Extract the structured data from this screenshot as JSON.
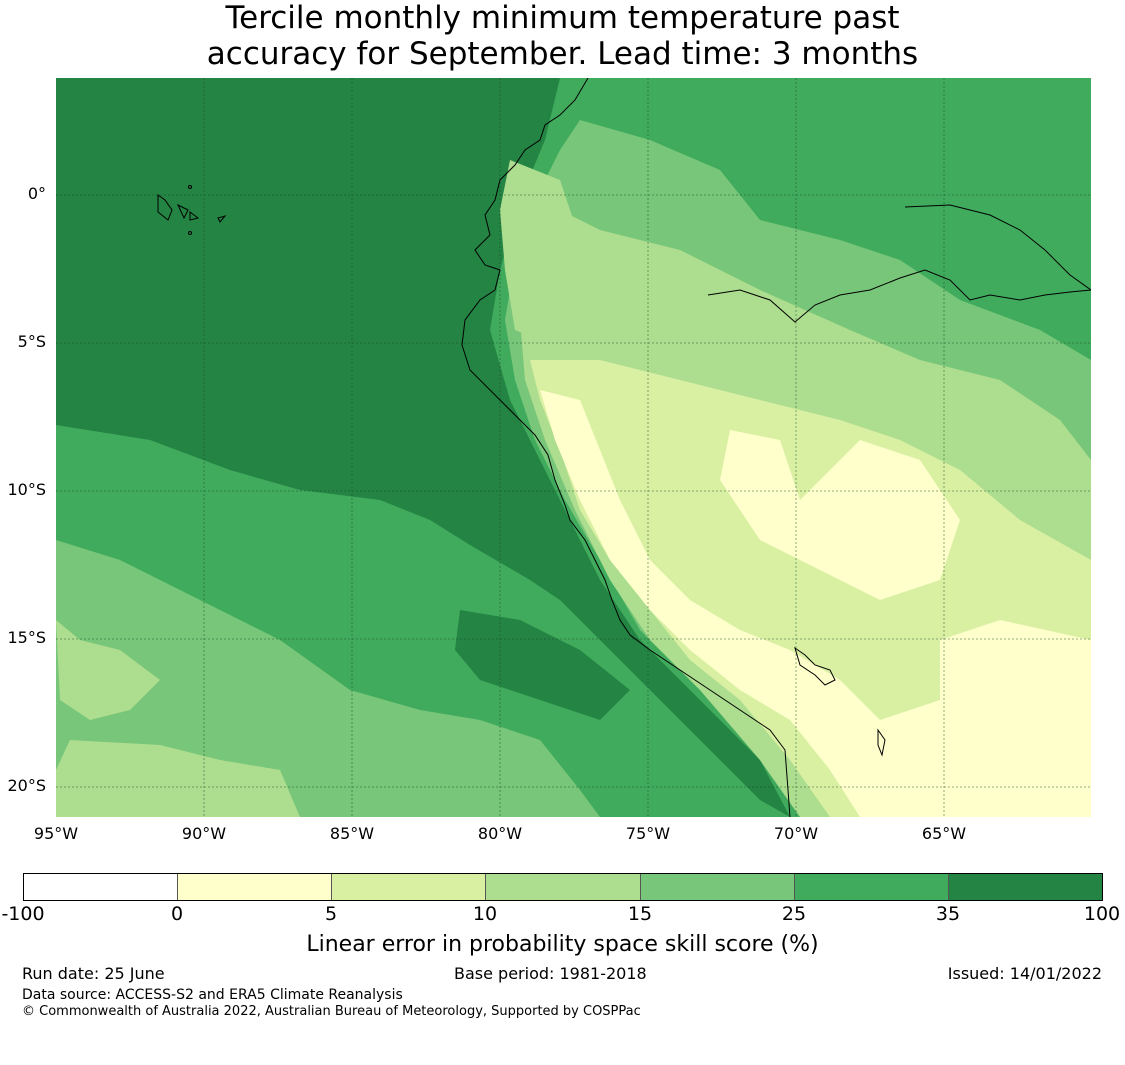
{
  "title": {
    "line1": "Tercile monthly minimum temperature past",
    "line2": "accuracy for September. Lead time: 3 months"
  },
  "map": {
    "lat_labels": [
      "0°",
      "5°S",
      "10°S",
      "15°S",
      "20°S"
    ],
    "lon_labels": [
      "95°W",
      "90°W",
      "85°W",
      "80°W",
      "75°W",
      "70°W",
      "65°W"
    ],
    "land_outline_color": "#000000",
    "gridline_color": "#1a4a2a"
  },
  "colorbar": {
    "ticks": [
      "-100",
      "0",
      "5",
      "10",
      "15",
      "25",
      "35",
      "100"
    ],
    "colors": [
      "#ffffff",
      "#ffffcc",
      "#d9f0a3",
      "#addd8e",
      "#78c679",
      "#41ab5d",
      "#238443"
    ],
    "label": "Linear error in probability space skill score (%)"
  },
  "footer": {
    "run_date": "Run date: 25 June",
    "base_period": "Base period: 1981-2018",
    "issued": "Issued: 14/01/2022",
    "data_source": "Data source: ACCESS-S2 and ERA5 Climate Reanalysis",
    "copyright": "© Commonwealth of Australia 2022, Australian Bureau of Meteorology, Supported by COSPPac"
  }
}
